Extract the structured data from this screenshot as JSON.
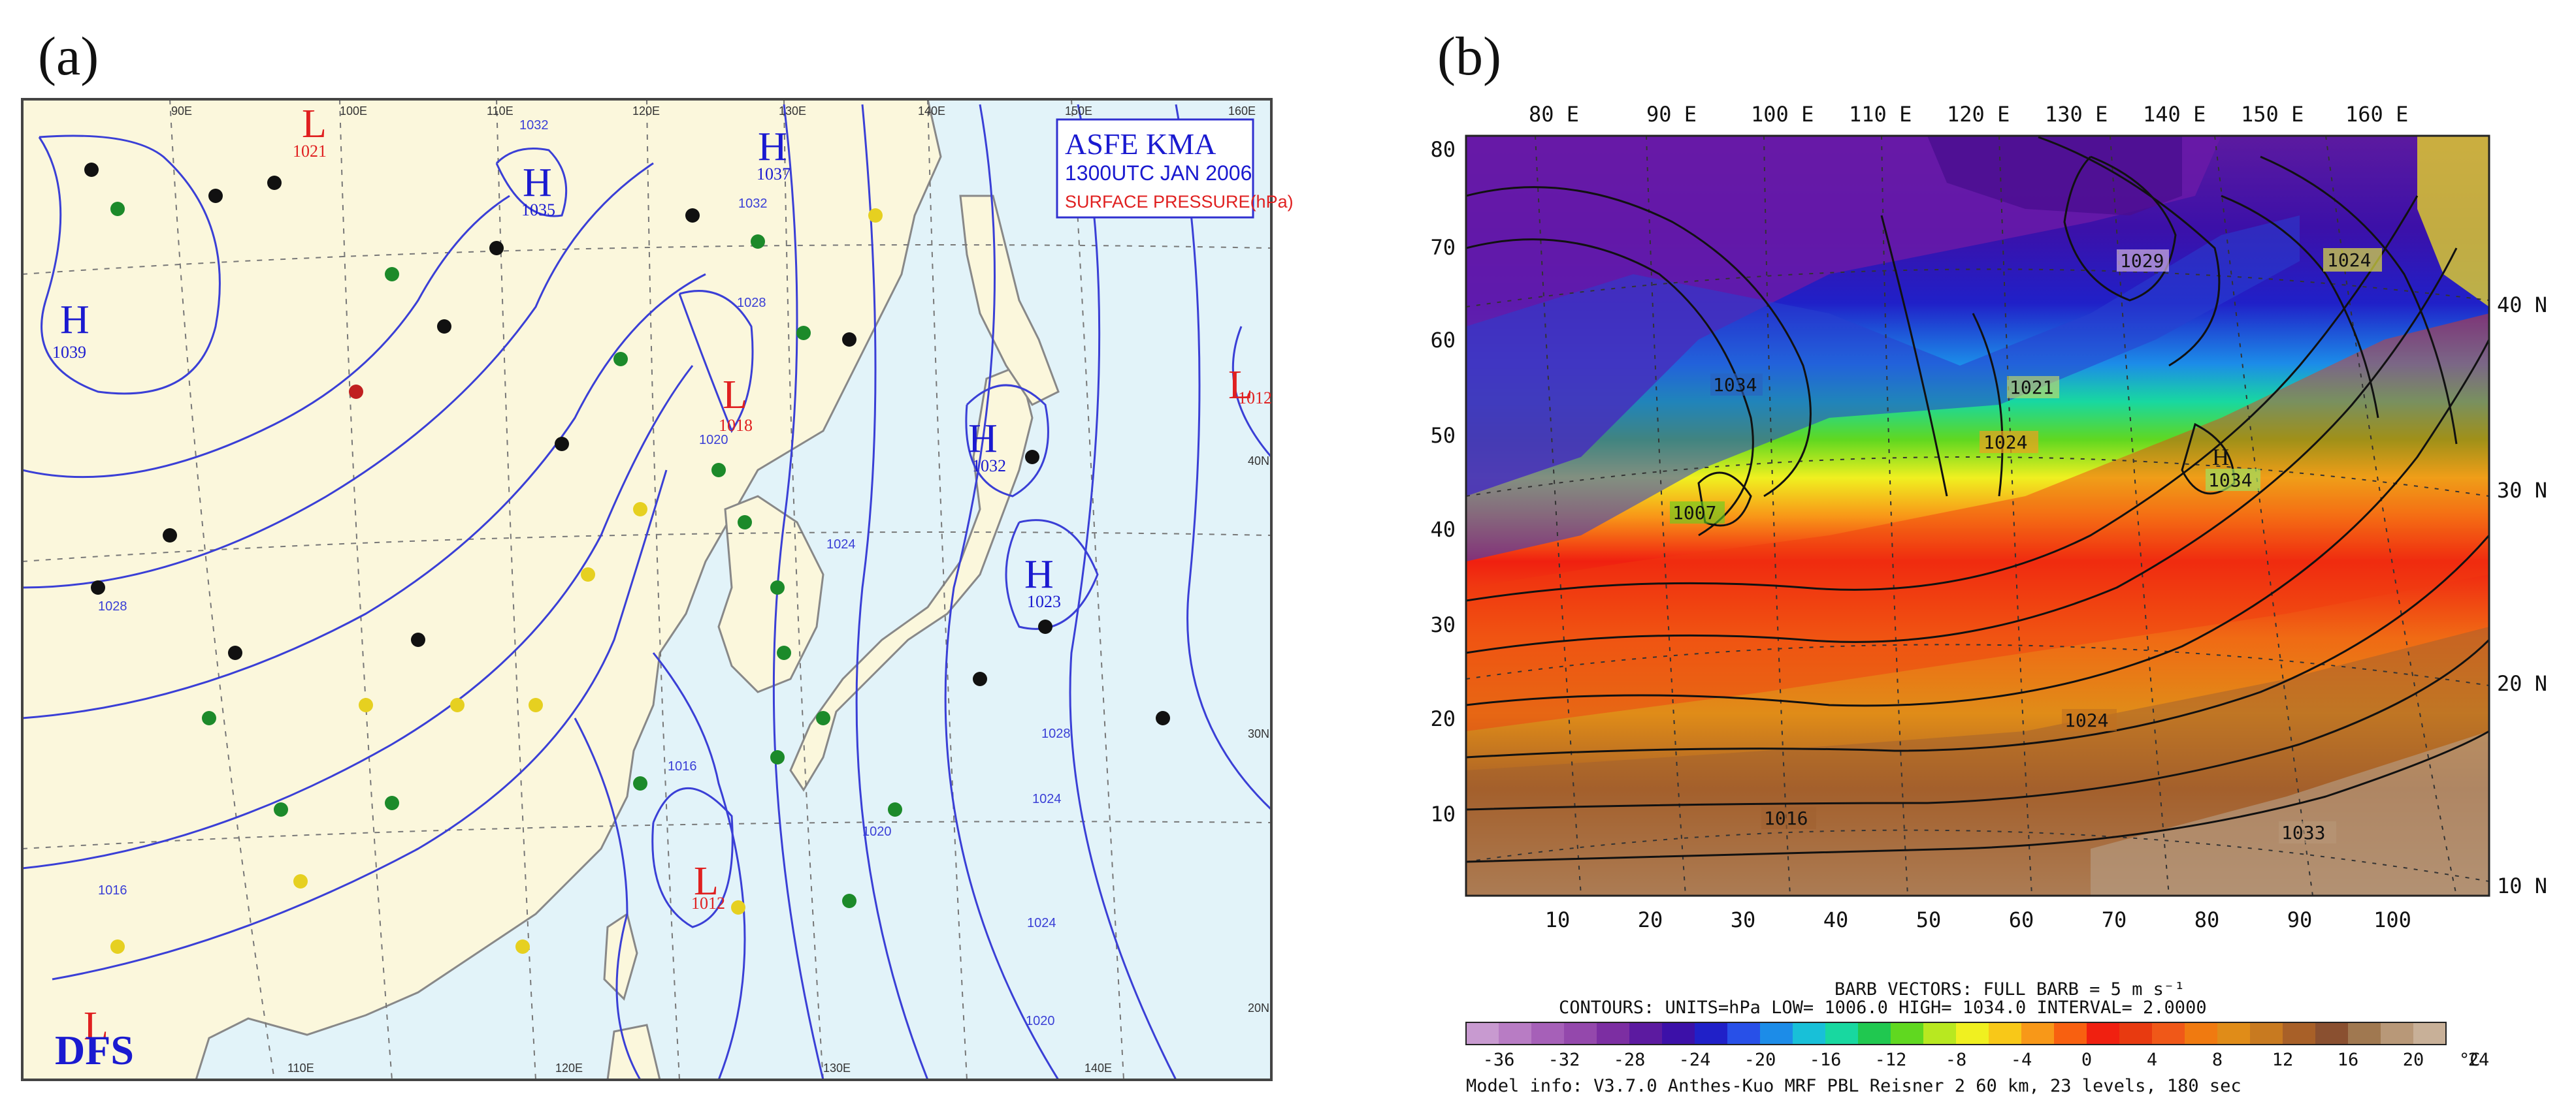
{
  "panel_a": {
    "label": "(a)",
    "header_title": "ASFE  KMA",
    "header_time": "1300UTC JAN 2006",
    "header_field": "SURFACE PRESSURE(hPa)",
    "logo": "DFS",
    "lon_labels_top": [
      "90E",
      "100E",
      "110E",
      "120E",
      "130E",
      "140E",
      "150E",
      "160E"
    ],
    "lon_labels_bottom": [
      "110E",
      "120E",
      "130E",
      "140E"
    ],
    "lat_labels_right": [
      "40N",
      "30N",
      "20N"
    ],
    "pressure_systems": [
      {
        "type": "H",
        "value": "1039"
      },
      {
        "type": "L",
        "value": "1021"
      },
      {
        "type": "H",
        "value": "1035"
      },
      {
        "type": "H",
        "value": "1037"
      },
      {
        "type": "L",
        "value": "1018"
      },
      {
        "type": "H",
        "value": "1032"
      },
      {
        "type": "H",
        "value": "1023"
      },
      {
        "type": "L",
        "value": "1012"
      },
      {
        "type": "L",
        "value": "1012"
      },
      {
        "type": "L",
        "value": ""
      }
    ],
    "isobar_labels": [
      "1032",
      "1028",
      "1024",
      "1020",
      "1016",
      "1028",
      "1024",
      "1016",
      "1020",
      "1024",
      "1020",
      "1028",
      "1032"
    ],
    "colors": {
      "land": "#fbf7dc",
      "sea": "#e2f3f9",
      "isobar": "#3a3fd6",
      "high": "#1a1ad0",
      "low": "#e02020",
      "header_border": "#3030d0"
    }
  },
  "panel_b": {
    "label": "(b)",
    "lon_labels_top": [
      "80 E",
      "90 E",
      "100 E",
      "110 E",
      "120 E",
      "130 E",
      "140 E",
      "150 E",
      "160 E"
    ],
    "y_labels_left": [
      "80",
      "70",
      "60",
      "50",
      "40",
      "30",
      "20",
      "10"
    ],
    "x_labels_bottom": [
      "10",
      "20",
      "30",
      "40",
      "50",
      "60",
      "70",
      "80",
      "90",
      "100"
    ],
    "lat_labels_right": [
      "40 N",
      "30 N",
      "20 N",
      "10 N"
    ],
    "contour_labels": [
      "1029",
      "1024",
      "1034",
      "1021",
      "1024",
      "1034",
      "1007",
      "1024",
      "1016",
      "1033"
    ],
    "barb_caption": "BARB VECTORS:  FULL BARB = 5 m s⁻¹",
    "contour_caption": "CONTOURS:  UNITS=hPa  LOW=  1006.0       HIGH=  1034.0      INTERVAL=   2.0000",
    "colorbar_ticks": [
      "-36",
      "-32",
      "-28",
      "-24",
      "-20",
      "-16",
      "-12",
      "-8",
      "-4",
      "0",
      "4",
      "8",
      "12",
      "16",
      "20",
      "24"
    ],
    "colorbar_unit": "°C",
    "colorbar_colors": [
      "#c89ad0",
      "#b87cc4",
      "#a660b8",
      "#9448ac",
      "#7c2ea2",
      "#5c1aa0",
      "#3c10a8",
      "#2020c8",
      "#2850e8",
      "#1c8ce8",
      "#18c0d8",
      "#18d8a0",
      "#20c850",
      "#60d820",
      "#b8e820",
      "#f0f020",
      "#f8c818",
      "#f89818",
      "#f86010",
      "#f02010",
      "#e83a10",
      "#f05818",
      "#f07a10",
      "#e08c18",
      "#c87a20",
      "#a86028",
      "#8a5030",
      "#a07850",
      "#b89878",
      "#c8b098"
    ],
    "model_info": "Model info: V3.7.0 Anthes-Kuo MRF PBL   Reisner 2    60 km,  23 levels,  180 sec"
  }
}
